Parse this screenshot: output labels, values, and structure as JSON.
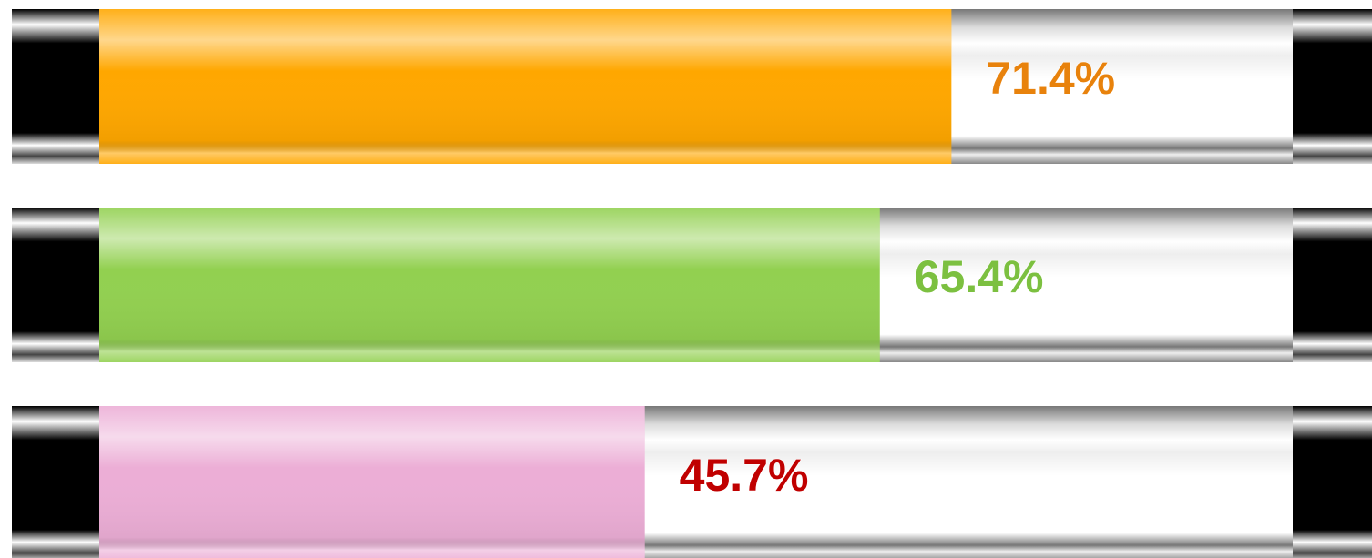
{
  "chart_data": {
    "type": "progress-bar",
    "values": [
      71.4,
      65.4,
      45.7
    ],
    "value_labels": [
      "71.4%",
      "65.4%",
      "45.7%"
    ],
    "colors": [
      "#ffa700",
      "#92d050",
      "#ecaed6"
    ],
    "label_colors": [
      "#e8820c",
      "#7cc040",
      "#c00000"
    ],
    "xlim": [
      0,
      100
    ]
  }
}
